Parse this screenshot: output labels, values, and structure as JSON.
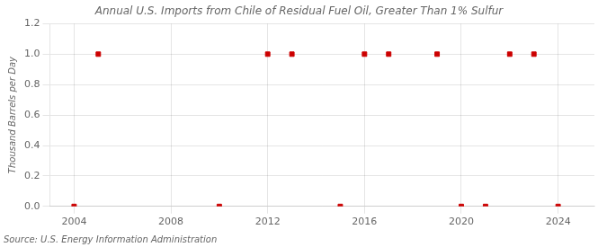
{
  "chart_data": {
    "type": "scatter",
    "title": "Annual U.S. Imports from Chile of Residual Fuel Oil, Greater Than 1% Sulfur",
    "ylabel": "Thousand Barrels per Day",
    "annotation": "Source: U.S. Energy Information Administration",
    "x": [
      2004,
      2005,
      2010,
      2012,
      2013,
      2015,
      2016,
      2017,
      2019,
      2020,
      2021,
      2022,
      2023,
      2024
    ],
    "values": [
      0.0,
      1.0,
      0.0,
      1.0,
      1.0,
      0.0,
      1.0,
      1.0,
      1.0,
      0.0,
      0.0,
      1.0,
      1.0,
      0.0
    ],
    "color": "#cc0000",
    "marker": "square",
    "xlim": [
      2003,
      2025.5
    ],
    "xticks": [
      2004,
      2008,
      2012,
      2016,
      2020,
      2024
    ],
    "ylim": [
      0.0,
      1.2
    ],
    "yticks": [
      {
        "value": 0,
        "label": "0.0"
      },
      0.2,
      0.4,
      0.6,
      0.8,
      {
        "value": 1,
        "label": "1.0"
      },
      1.2
    ],
    "grid": true
  }
}
